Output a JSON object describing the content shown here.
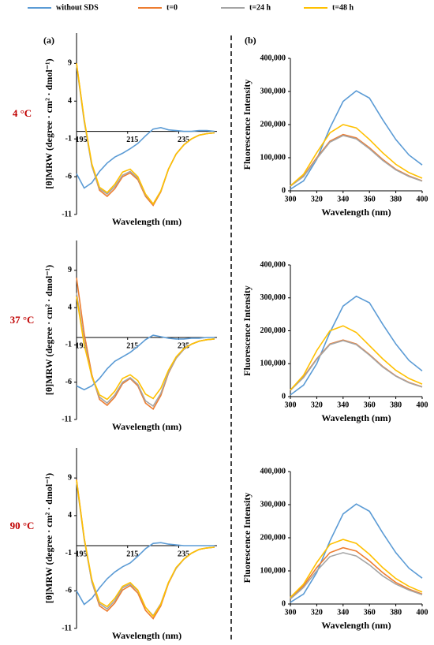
{
  "panel_labels": [
    "(a)",
    "(b)"
  ],
  "row_labels": [
    "4 °C",
    "37 °C",
    "90 °C"
  ],
  "chart_data": [
    {
      "type": "line",
      "x_label": "Wavelength (nm)",
      "y_label": "[θ]MRW (degree · cm² · dmol⁻¹)",
      "x": [
        195,
        198,
        201,
        204,
        207,
        210,
        213,
        216,
        219,
        222,
        225,
        228,
        231,
        234,
        237,
        240,
        243,
        246,
        249
      ],
      "xlim": [
        195,
        250
      ],
      "ylim": [
        -11,
        13
      ],
      "xticks": [
        195,
        215,
        235
      ],
      "yticks": [
        9,
        4,
        -1,
        -6,
        -11
      ],
      "series": [
        {
          "name": "without SDS",
          "color": "#5b9bd5",
          "values": [
            -5.6,
            -7.5,
            -6.8,
            -5.3,
            -4.2,
            -3.4,
            -2.9,
            -2.3,
            -1.6,
            -0.6,
            0.3,
            0.5,
            0.2,
            0.1,
            0,
            0,
            0.1,
            0.1,
            0
          ]
        },
        {
          "name": "t=0",
          "color": "#ed7d31",
          "values": [
            9,
            1.5,
            -4.5,
            -7.8,
            -8.6,
            -7.6,
            -6,
            -5.5,
            -6.4,
            -8.6,
            -9.8,
            -8,
            -5,
            -3,
            -1.8,
            -1,
            -0.5,
            -0.3,
            -0.2
          ]
        },
        {
          "name": "t=24 h",
          "color": "#a5a5a5",
          "values": [
            8.8,
            1.3,
            -4.6,
            -7.6,
            -8.3,
            -7.3,
            -5.8,
            -5.3,
            -6.2,
            -8.4,
            -9.6,
            -7.9,
            -5,
            -3,
            -1.8,
            -1,
            -0.5,
            -0.3,
            -0.2
          ]
        },
        {
          "name": "t=48 h",
          "color": "#ffc000",
          "values": [
            9,
            1.6,
            -4.3,
            -7.4,
            -8.1,
            -7,
            -5.4,
            -5,
            -6,
            -8.3,
            -9.6,
            -7.9,
            -5,
            -3,
            -1.8,
            -1,
            -0.5,
            -0.3,
            -0.2
          ]
        }
      ]
    },
    {
      "type": "line",
      "x_label": "Wavelength (nm)",
      "y_label": "Fluorescence Intensity",
      "x": [
        300,
        310,
        320,
        330,
        340,
        350,
        360,
        370,
        380,
        390,
        400
      ],
      "xlim": [
        300,
        400
      ],
      "ylim": [
        0,
        400000
      ],
      "xticks": [
        300,
        320,
        340,
        360,
        380,
        400
      ],
      "yticks": [
        0,
        {
          "value": 100000,
          "label": "100,000"
        },
        {
          "value": 200000,
          "label": "200,000"
        },
        {
          "value": 300000,
          "label": "300,000"
        },
        {
          "value": 400000,
          "label": "400,000"
        }
      ],
      "series": [
        {
          "name": "without SDS",
          "color": "#5b9bd5",
          "values": [
            5000,
            30000,
            95000,
            190000,
            270000,
            302000,
            280000,
            215000,
            155000,
            108000,
            78000
          ]
        },
        {
          "name": "t=0",
          "color": "#ed7d31",
          "values": [
            15000,
            45000,
            100000,
            150000,
            170000,
            160000,
            130000,
            95000,
            65000,
            45000,
            30000
          ]
        },
        {
          "name": "t=24 h",
          "color": "#a5a5a5",
          "values": [
            14000,
            43000,
            97000,
            147000,
            167000,
            157000,
            127000,
            92000,
            63000,
            43000,
            29000
          ]
        },
        {
          "name": "t=48 h",
          "color": "#ffc000",
          "values": [
            15000,
            50000,
            115000,
            175000,
            200000,
            190000,
            155000,
            115000,
            80000,
            55000,
            38000
          ]
        }
      ]
    },
    {
      "type": "line",
      "x_label": "Wavelength (nm)",
      "y_label": "[θ]MRW (degree · cm² · dmol⁻¹)",
      "x": [
        195,
        198,
        201,
        204,
        207,
        210,
        213,
        216,
        219,
        222,
        225,
        228,
        231,
        234,
        237,
        240,
        243,
        246,
        249
      ],
      "xlim": [
        195,
        250
      ],
      "ylim": [
        -11,
        13
      ],
      "xticks": [
        195,
        215,
        235
      ],
      "yticks": [
        9,
        4,
        -1,
        -6,
        -11
      ],
      "series": [
        {
          "name": "without SDS",
          "color": "#5b9bd5",
          "values": [
            -6.5,
            -7,
            -6.5,
            -5.5,
            -4.2,
            -3.2,
            -2.6,
            -2,
            -1.2,
            -0.3,
            0.3,
            0.1,
            -0.1,
            -0.2,
            -0.2,
            -0.1,
            -0.1,
            0,
            0
          ]
        },
        {
          "name": "t=0",
          "color": "#ed7d31",
          "values": [
            8,
            0.5,
            -5,
            -8.3,
            -9.1,
            -8,
            -6.2,
            -5.5,
            -6.5,
            -8.8,
            -9.6,
            -7.8,
            -4.8,
            -2.8,
            -1.6,
            -0.9,
            -0.5,
            -0.3,
            -0.2
          ]
        },
        {
          "name": "t=24 h",
          "color": "#a5a5a5",
          "values": [
            6,
            -0.5,
            -5.3,
            -8,
            -8.8,
            -7.7,
            -6,
            -5.4,
            -6.3,
            -8.5,
            -9.2,
            -7.5,
            -4.7,
            -2.8,
            -1.6,
            -0.9,
            -0.5,
            -0.3,
            -0.2
          ]
        },
        {
          "name": "t=48 h",
          "color": "#ffc000",
          "values": [
            5.5,
            -1,
            -5.2,
            -7.7,
            -8.3,
            -7.2,
            -5.5,
            -5,
            -5.8,
            -7.6,
            -8.2,
            -6.8,
            -4.4,
            -2.6,
            -1.5,
            -0.9,
            -0.5,
            -0.3,
            -0.2
          ]
        }
      ]
    },
    {
      "type": "line",
      "x_label": "Wavelength (nm)",
      "y_label": "Fluorescence Intensity",
      "x": [
        300,
        310,
        320,
        330,
        340,
        350,
        360,
        370,
        380,
        390,
        400
      ],
      "xlim": [
        300,
        400
      ],
      "ylim": [
        0,
        400000
      ],
      "xticks": [
        300,
        320,
        340,
        360,
        380,
        400
      ],
      "yticks": [
        0,
        {
          "value": 100000,
          "label": "100,000"
        },
        {
          "value": 200000,
          "label": "200,000"
        },
        {
          "value": 300000,
          "label": "300,000"
        },
        {
          "value": 400000,
          "label": "400,000"
        }
      ],
      "series": [
        {
          "name": "without SDS",
          "color": "#5b9bd5",
          "values": [
            5000,
            35000,
            100000,
            195000,
            275000,
            305000,
            285000,
            220000,
            160000,
            110000,
            78000
          ]
        },
        {
          "name": "t=0",
          "color": "#ed7d31",
          "values": [
            20000,
            60000,
            115000,
            160000,
            172000,
            160000,
            128000,
            92000,
            63000,
            43000,
            30000
          ]
        },
        {
          "name": "t=24 h",
          "color": "#a5a5a5",
          "values": [
            19000,
            58000,
            113000,
            158000,
            170000,
            158000,
            126000,
            90000,
            62000,
            42000,
            29000
          ]
        },
        {
          "name": "t=48 h",
          "color": "#ffc000",
          "values": [
            20000,
            65000,
            140000,
            200000,
            215000,
            195000,
            155000,
            115000,
            80000,
            55000,
            38000
          ]
        }
      ]
    },
    {
      "type": "line",
      "x_label": "Wavelength (nm)",
      "y_label": "[θ]MRW (degree · cm² · dmol⁻¹)",
      "x": [
        195,
        198,
        201,
        204,
        207,
        210,
        213,
        216,
        219,
        222,
        225,
        228,
        231,
        234,
        237,
        240,
        243,
        246,
        249
      ],
      "xlim": [
        195,
        250
      ],
      "ylim": [
        -11,
        13
      ],
      "xticks": [
        195,
        215,
        235
      ],
      "yticks": [
        9,
        4,
        -1,
        -6,
        -11
      ],
      "series": [
        {
          "name": "without SDS",
          "color": "#5b9bd5",
          "values": [
            -6,
            -7.8,
            -7,
            -5.6,
            -4.4,
            -3.5,
            -2.8,
            -2.3,
            -1.4,
            -0.4,
            0.3,
            0.4,
            0.2,
            0.1,
            0,
            0,
            0,
            0,
            0
          ]
        },
        {
          "name": "t=0",
          "color": "#ed7d31",
          "values": [
            8.8,
            1,
            -4.8,
            -8,
            -8.7,
            -7.6,
            -5.9,
            -5.3,
            -6.3,
            -8.6,
            -9.7,
            -8,
            -5,
            -3,
            -1.8,
            -1,
            -0.5,
            -0.3,
            -0.2
          ]
        },
        {
          "name": "t=24 h",
          "color": "#a5a5a5",
          "values": [
            8.5,
            0.8,
            -4.8,
            -7.7,
            -8.4,
            -7.3,
            -5.6,
            -5.1,
            -6,
            -8.2,
            -9.3,
            -7.7,
            -4.9,
            -3,
            -1.8,
            -1,
            -0.5,
            -0.3,
            -0.2
          ]
        },
        {
          "name": "t=48 h",
          "color": "#ffc000",
          "values": [
            8.7,
            1,
            -4.5,
            -7.5,
            -8.1,
            -7,
            -5.4,
            -4.9,
            -5.9,
            -8.2,
            -9.4,
            -7.8,
            -4.9,
            -2.9,
            -1.8,
            -1,
            -0.5,
            -0.3,
            -0.2
          ]
        }
      ]
    },
    {
      "type": "line",
      "x_label": "Wavelength (nm)",
      "y_label": "Fluorescence Intensity",
      "x": [
        300,
        310,
        320,
        330,
        340,
        350,
        360,
        370,
        380,
        390,
        400
      ],
      "xlim": [
        300,
        400
      ],
      "ylim": [
        0,
        400000
      ],
      "xticks": [
        300,
        320,
        340,
        360,
        380,
        400
      ],
      "yticks": [
        0,
        {
          "value": 100000,
          "label": "100,000"
        },
        {
          "value": 200000,
          "label": "200,000"
        },
        {
          "value": 300000,
          "label": "300,000"
        },
        {
          "value": 400000,
          "label": "400,000"
        }
      ],
      "series": [
        {
          "name": "without SDS",
          "color": "#5b9bd5",
          "values": [
            5000,
            30000,
            95000,
            190000,
            272000,
            302000,
            280000,
            215000,
            155000,
            108000,
            78000
          ]
        },
        {
          "name": "t=0",
          "color": "#ed7d31",
          "values": [
            18000,
            55000,
            110000,
            155000,
            170000,
            160000,
            130000,
            95000,
            65000,
            45000,
            30000
          ]
        },
        {
          "name": "t=24 h",
          "color": "#a5a5a5",
          "values": [
            15000,
            50000,
            100000,
            143000,
            155000,
            145000,
            118000,
            85000,
            60000,
            42000,
            28000
          ]
        },
        {
          "name": "t=48 h",
          "color": "#ffc000",
          "values": [
            20000,
            60000,
            125000,
            180000,
            195000,
            183000,
            150000,
            110000,
            77000,
            53000,
            36000
          ]
        }
      ]
    }
  ]
}
